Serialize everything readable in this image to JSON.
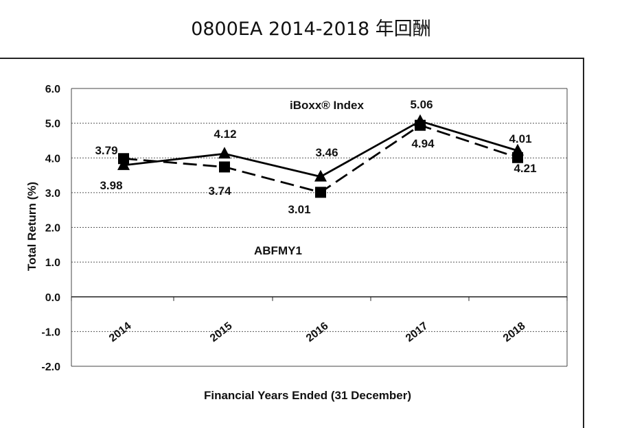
{
  "page": {
    "title": "0800EA 2014-2018 年回酬"
  },
  "chart_data": {
    "type": "line",
    "title": "0800EA 2014-2018 年回酬",
    "xlabel": "Financial Years Ended (31 December)",
    "ylabel": "Total Return (%)",
    "categories": [
      "2014",
      "2015",
      "2016",
      "2017",
      "2018"
    ],
    "ylim": [
      -2.0,
      6.0
    ],
    "yticks": [
      "6.0",
      "5.0",
      "4.0",
      "3.0",
      "2.0",
      "1.0",
      "0.0",
      "-1.0",
      "-2.0"
    ],
    "grid": true,
    "series": [
      {
        "name": "iBoxx® Index",
        "marker": "triangle",
        "line_style": "solid",
        "values": [
          3.79,
          4.12,
          3.46,
          5.06,
          4.21
        ]
      },
      {
        "name": "ABFMY1",
        "marker": "square",
        "line_style": "dashed",
        "values": [
          3.98,
          3.74,
          3.01,
          4.94,
          4.01
        ]
      }
    ],
    "annotations": [
      "iBoxx® Index",
      "ABFMY1"
    ]
  }
}
